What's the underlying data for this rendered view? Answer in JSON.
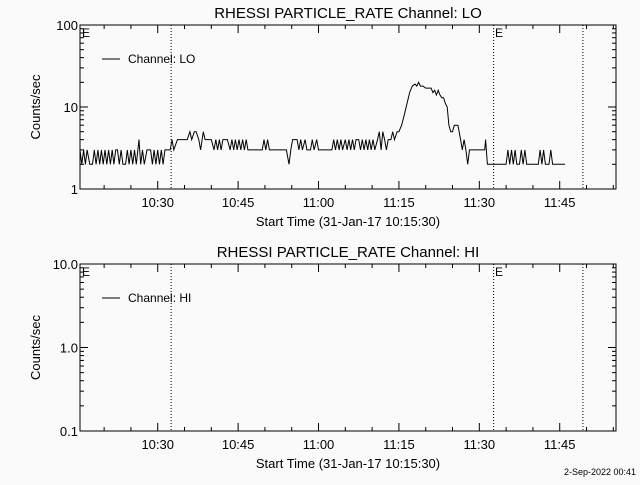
{
  "footer": {
    "timestamp": "2-Sep-2022 00:41"
  },
  "chart_data": [
    {
      "type": "line",
      "title": "RHESSI PARTICLE_RATE Channel: LO",
      "xlabel": "Start Time (31-Jan-17 10:15:30)",
      "ylabel": "Counts/sec",
      "yscale": "log",
      "ylim": [
        1,
        100
      ],
      "xlim": [
        "10:15:30",
        "11:55:30"
      ],
      "x_ticks": [
        "10:30",
        "10:45",
        "11:00",
        "11:15",
        "11:30",
        "11:45"
      ],
      "y_ticks": [
        "1",
        "10",
        "100"
      ],
      "y_tick_values": [
        1,
        10,
        100
      ],
      "legend": {
        "entry": "Channel: LO",
        "placement": "top-left"
      },
      "markers": [
        {
          "time": "10:32:30",
          "label": ""
        },
        {
          "time": "11:32:40",
          "label": ""
        },
        {
          "time": "11:49:20",
          "label": ""
        }
      ],
      "e_labels": [
        "E",
        "E"
      ],
      "grid": false,
      "series": [
        {
          "name": "Channel: LO",
          "color": "#000000",
          "points": [
            [
              "10:15:30",
              3
            ],
            [
              "10:15:50",
              2
            ],
            [
              "10:16:10",
              3
            ],
            [
              "10:16:30",
              2
            ],
            [
              "10:16:50",
              3
            ],
            [
              "10:17:20",
              2
            ],
            [
              "10:17:50",
              2
            ],
            [
              "10:18:10",
              3
            ],
            [
              "10:18:30",
              2
            ],
            [
              "10:18:50",
              3
            ],
            [
              "10:19:10",
              2
            ],
            [
              "10:19:30",
              3
            ],
            [
              "10:19:50",
              2
            ],
            [
              "10:20:10",
              3
            ],
            [
              "10:20:30",
              2
            ],
            [
              "10:20:50",
              3
            ],
            [
              "10:21:10",
              2
            ],
            [
              "10:21:30",
              3
            ],
            [
              "10:21:50",
              2
            ],
            [
              "10:22:10",
              3
            ],
            [
              "10:22:30",
              3
            ],
            [
              "10:22:50",
              2
            ],
            [
              "10:23:10",
              3
            ],
            [
              "10:23:30",
              2
            ],
            [
              "10:24:00",
              2
            ],
            [
              "10:24:20",
              3
            ],
            [
              "10:24:40",
              2
            ],
            [
              "10:25:00",
              3
            ],
            [
              "10:25:20",
              2
            ],
            [
              "10:25:40",
              3
            ],
            [
              "10:26:00",
              2
            ],
            [
              "10:26:30",
              4
            ],
            [
              "10:26:50",
              2
            ],
            [
              "10:27:10",
              3
            ],
            [
              "10:27:30",
              2
            ],
            [
              "10:28:00",
              3
            ],
            [
              "10:28:40",
              3
            ],
            [
              "10:29:00",
              2
            ],
            [
              "10:29:20",
              3
            ],
            [
              "10:29:40",
              2
            ],
            [
              "10:30:00",
              3
            ],
            [
              "10:30:20",
              2
            ],
            [
              "10:30:40",
              3
            ],
            [
              "10:31:00",
              2
            ],
            [
              "10:31:20",
              3
            ],
            [
              "10:32:20",
              3
            ],
            [
              "10:32:40",
              4
            ],
            [
              "10:33:00",
              3
            ],
            [
              "10:33:40",
              4
            ],
            [
              "10:35:30",
              4
            ],
            [
              "10:36:00",
              5
            ],
            [
              "10:36:20",
              4
            ],
            [
              "10:36:50",
              5
            ],
            [
              "10:37:10",
              5
            ],
            [
              "10:37:40",
              4
            ],
            [
              "10:38:00",
              3
            ],
            [
              "10:38:30",
              5
            ],
            [
              "10:38:50",
              4
            ],
            [
              "10:40:00",
              4
            ],
            [
              "10:40:30",
              3
            ],
            [
              "10:40:50",
              4
            ],
            [
              "10:41:10",
              3
            ],
            [
              "10:41:30",
              4
            ],
            [
              "10:41:50",
              3
            ],
            [
              "10:42:10",
              4
            ],
            [
              "10:43:00",
              4
            ],
            [
              "10:43:30",
              3
            ],
            [
              "10:43:50",
              4
            ],
            [
              "10:44:10",
              3
            ],
            [
              "10:44:30",
              4
            ],
            [
              "10:44:50",
              3
            ],
            [
              "10:45:10",
              4
            ],
            [
              "10:45:30",
              3
            ],
            [
              "10:45:50",
              4
            ],
            [
              "10:46:10",
              3
            ],
            [
              "10:46:30",
              4
            ],
            [
              "10:46:50",
              3
            ],
            [
              "10:47:10",
              3
            ],
            [
              "10:49:30",
              3
            ],
            [
              "10:49:50",
              4
            ],
            [
              "10:50:10",
              3
            ],
            [
              "10:50:30",
              4
            ],
            [
              "10:50:50",
              3
            ],
            [
              "10:54:00",
              3
            ],
            [
              "10:54:30",
              2
            ],
            [
              "10:54:50",
              3
            ],
            [
              "10:55:10",
              4
            ],
            [
              "10:56:00",
              4
            ],
            [
              "10:56:20",
              3
            ],
            [
              "10:56:40",
              4
            ],
            [
              "10:57:00",
              3
            ],
            [
              "10:57:30",
              4
            ],
            [
              "10:57:50",
              3
            ],
            [
              "10:58:30",
              3
            ],
            [
              "10:58:50",
              4
            ],
            [
              "10:59:10",
              3
            ],
            [
              "10:59:40",
              4
            ],
            [
              "11:00:00",
              3
            ],
            [
              "11:02:30",
              3
            ],
            [
              "11:02:50",
              4
            ],
            [
              "11:03:10",
              3
            ],
            [
              "11:03:30",
              4
            ],
            [
              "11:03:50",
              3
            ],
            [
              "11:04:10",
              4
            ],
            [
              "11:04:30",
              3
            ],
            [
              "11:05:00",
              4
            ],
            [
              "11:05:20",
              3
            ],
            [
              "11:05:40",
              4
            ],
            [
              "11:06:00",
              3
            ],
            [
              "11:06:20",
              4
            ],
            [
              "11:06:40",
              3
            ],
            [
              "11:07:00",
              4
            ],
            [
              "11:07:30",
              4
            ],
            [
              "11:07:50",
              3
            ],
            [
              "11:08:10",
              4
            ],
            [
              "11:08:30",
              3
            ],
            [
              "11:08:50",
              4
            ],
            [
              "11:09:10",
              3
            ],
            [
              "11:09:30",
              4
            ],
            [
              "11:09:50",
              3
            ],
            [
              "11:10:10",
              4
            ],
            [
              "11:10:30",
              3
            ],
            [
              "11:11:00",
              4
            ],
            [
              "11:11:20",
              5
            ],
            [
              "11:11:40",
              3
            ],
            [
              "11:12:00",
              5
            ],
            [
              "11:12:20",
              4
            ],
            [
              "11:12:40",
              3
            ],
            [
              "11:13:00",
              4
            ],
            [
              "11:13:30",
              4
            ],
            [
              "11:13:50",
              5
            ],
            [
              "11:14:10",
              4
            ],
            [
              "11:14:40",
              5
            ],
            [
              "11:15:00",
              5
            ],
            [
              "11:15:30",
              6
            ],
            [
              "11:16:00",
              8
            ],
            [
              "11:16:30",
              11
            ],
            [
              "11:17:00",
              15
            ],
            [
              "11:17:30",
              18
            ],
            [
              "11:18:00",
              19
            ],
            [
              "11:18:20",
              18
            ],
            [
              "11:18:40",
              20
            ],
            [
              "11:19:00",
              18
            ],
            [
              "11:19:30",
              18
            ],
            [
              "11:20:00",
              17
            ],
            [
              "11:21:00",
              17
            ],
            [
              "11:21:20",
              15
            ],
            [
              "11:21:40",
              16
            ],
            [
              "11:22:00",
              14
            ],
            [
              "11:22:20",
              16
            ],
            [
              "11:22:40",
              14
            ],
            [
              "11:23:00",
              13
            ],
            [
              "11:23:20",
              13
            ],
            [
              "11:23:40",
              11
            ],
            [
              "11:24:00",
              10
            ],
            [
              "11:24:20",
              6
            ],
            [
              "11:24:40",
              5
            ],
            [
              "11:25:00",
              5
            ],
            [
              "11:25:20",
              6
            ],
            [
              "11:26:00",
              6
            ],
            [
              "11:26:30",
              4
            ],
            [
              "11:26:50",
              3
            ],
            [
              "11:27:10",
              4
            ],
            [
              "11:27:30",
              3
            ],
            [
              "11:27:50",
              2
            ],
            [
              "11:28:10",
              3
            ],
            [
              "11:29:00",
              3
            ],
            [
              "11:31:00",
              3
            ],
            [
              "11:31:10",
              4
            ],
            [
              "11:31:30",
              2
            ],
            [
              "11:35:00",
              2
            ],
            [
              "11:35:20",
              3
            ],
            [
              "11:35:40",
              2
            ],
            [
              "11:36:00",
              3
            ],
            [
              "11:36:20",
              2
            ],
            [
              "11:36:40",
              3
            ],
            [
              "11:37:00",
              2
            ],
            [
              "11:37:30",
              2
            ],
            [
              "11:37:50",
              3
            ],
            [
              "11:38:10",
              2
            ],
            [
              "11:38:30",
              3
            ],
            [
              "11:38:50",
              2
            ],
            [
              "11:41:00",
              2
            ],
            [
              "11:41:20",
              3
            ],
            [
              "11:41:40",
              2
            ],
            [
              "11:42:00",
              3
            ],
            [
              "11:42:20",
              2
            ],
            [
              "11:43:00",
              2
            ],
            [
              "11:43:20",
              3
            ],
            [
              "11:43:40",
              2
            ],
            [
              "11:46:00",
              2
            ]
          ]
        }
      ]
    },
    {
      "type": "line",
      "title": "RHESSI PARTICLE_RATE Channel: HI",
      "xlabel": "Start Time (31-Jan-17 10:15:30)",
      "ylabel": "Counts/sec",
      "yscale": "log",
      "ylim": [
        0.1,
        10
      ],
      "xlim": [
        "10:15:30",
        "11:55:30"
      ],
      "x_ticks": [
        "10:30",
        "10:45",
        "11:00",
        "11:15",
        "11:30",
        "11:45"
      ],
      "y_ticks": [
        "0.1",
        "1.0",
        "10.0"
      ],
      "y_tick_values": [
        0.1,
        1,
        10
      ],
      "legend": {
        "entry": "Channel: HI",
        "placement": "top-left"
      },
      "markers": [
        {
          "time": "10:32:30",
          "label": ""
        },
        {
          "time": "11:32:40",
          "label": ""
        },
        {
          "time": "11:49:20",
          "label": ""
        }
      ],
      "e_labels": [
        "E",
        "E"
      ],
      "grid": false,
      "series": [
        {
          "name": "Channel: HI",
          "color": "#000000",
          "points": []
        }
      ]
    }
  ]
}
